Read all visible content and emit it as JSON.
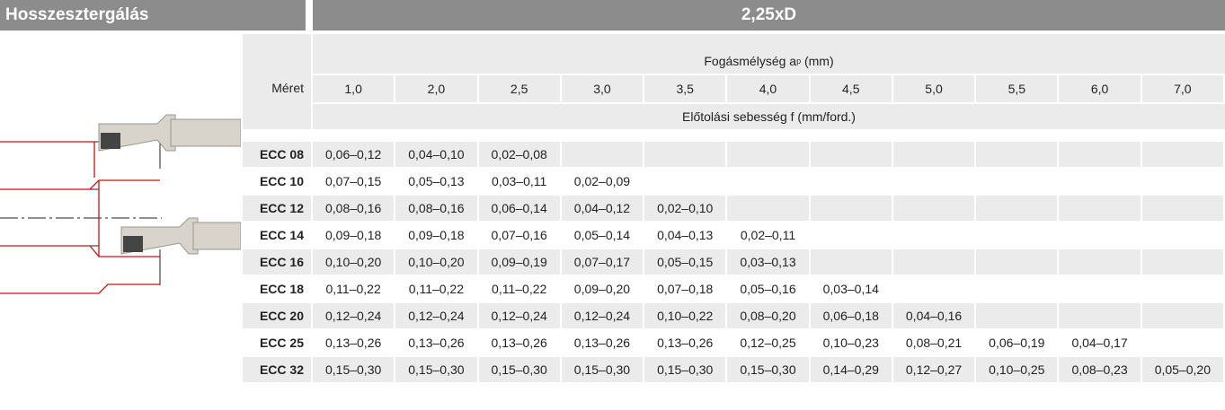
{
  "header": {
    "left_title": "Hosszesztergálás",
    "right_title": "2,25xD"
  },
  "table": {
    "size_label": "Méret",
    "depth_label": "Fogásmélység a",
    "depth_sub": "p",
    "depth_unit": "(mm)",
    "feed_label": "Előtolási sebesség f (mm/ford.)",
    "columns": [
      "1,0",
      "2,0",
      "2,5",
      "3,0",
      "3,5",
      "4,0",
      "4,5",
      "5,0",
      "5,5",
      "6,0",
      "7,0"
    ],
    "rows": [
      {
        "label": "ECC 08",
        "cells": [
          "0,06–0,12",
          "0,04–0,10",
          "0,02–0,08",
          null,
          null,
          null,
          null,
          null,
          null,
          null,
          null
        ]
      },
      {
        "label": "ECC 10",
        "cells": [
          "0,07–0,15",
          "0,05–0,13",
          "0,03–0,11",
          "0,02–0,09",
          null,
          null,
          null,
          null,
          null,
          null,
          null
        ]
      },
      {
        "label": "ECC 12",
        "cells": [
          "0,08–0,16",
          "0,08–0,16",
          "0,06–0,14",
          "0,04–0,12",
          "0,02–0,10",
          null,
          null,
          null,
          null,
          null,
          null
        ]
      },
      {
        "label": "ECC 14",
        "cells": [
          "0,09–0,18",
          "0,09–0,18",
          "0,07–0,16",
          "0,05–0,14",
          "0,04–0,13",
          "0,02–0,11",
          null,
          null,
          null,
          null,
          null
        ]
      },
      {
        "label": "ECC 16",
        "cells": [
          "0,10–0,20",
          "0,10–0,20",
          "0,09–0,19",
          "0,07–0,17",
          "0,05–0,15",
          "0,03–0,13",
          null,
          null,
          null,
          null,
          null
        ]
      },
      {
        "label": "ECC 18",
        "cells": [
          "0,11–0,22",
          "0,11–0,22",
          "0,11–0,22",
          "0,09–0,20",
          "0,07–0,18",
          "0,05–0,16",
          "0,03–0,14",
          null,
          null,
          null,
          null
        ]
      },
      {
        "label": "ECC 20",
        "cells": [
          "0,12–0,24",
          "0,12–0,24",
          "0,12–0,24",
          "0,12–0,24",
          "0,10–0,22",
          "0,08–0,20",
          "0,06–0,18",
          "0,04–0,16",
          null,
          null,
          null
        ]
      },
      {
        "label": "ECC 25",
        "cells": [
          "0,13–0,26",
          "0,13–0,26",
          "0,13–0,26",
          "0,13–0,26",
          "0,13–0,26",
          "0,12–0,25",
          "0,10–0,23",
          "0,08–0,21",
          "0,06–0,19",
          "0,04–0,17",
          null
        ]
      },
      {
        "label": "ECC 32",
        "cells": [
          "0,15–0,30",
          "0,15–0,30",
          "0,15–0,30",
          "0,15–0,30",
          "0,15–0,30",
          "0,15–0,30",
          "0,14–0,29",
          "0,12–0,27",
          "0,10–0,25",
          "0,08–0,23",
          "0,05–0,20"
        ]
      }
    ]
  }
}
